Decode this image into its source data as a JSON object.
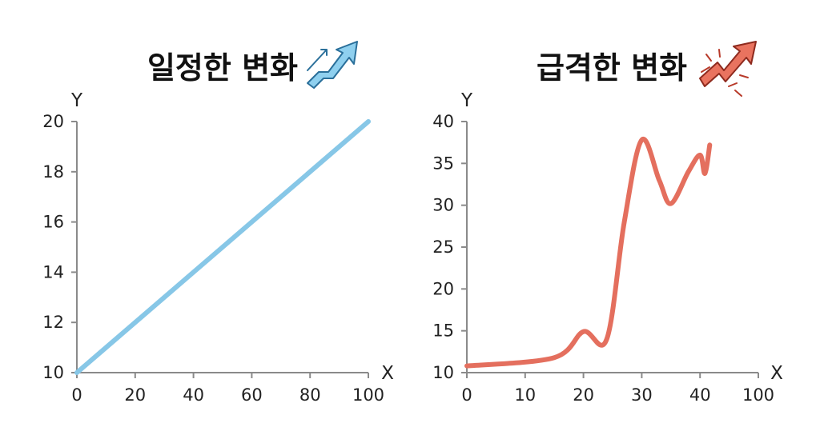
{
  "chart_data": [
    {
      "type": "line",
      "title": "일정한 변화",
      "title_icon": "rising-arrow-icon",
      "color": "#87c7e7",
      "xlabel": "X",
      "ylabel": "Y",
      "xlim": [
        0,
        100
      ],
      "ylim": [
        10,
        20
      ],
      "x_ticks": [
        0,
        20,
        40,
        60,
        80,
        100
      ],
      "y_ticks": [
        10,
        12,
        14,
        16,
        18,
        20
      ],
      "grid": false,
      "x": [
        0,
        100
      ],
      "y": [
        10,
        20
      ]
    },
    {
      "type": "line",
      "title": "급격한 변화",
      "title_icon": "sharp-rise-arrow-icon",
      "color": "#e46f5e",
      "xlabel": "X",
      "ylabel": "Y",
      "xlim": [
        0,
        100
      ],
      "ylim": [
        10,
        40
      ],
      "x_ticks": [
        0,
        10,
        20,
        30,
        40,
        100
      ],
      "y_ticks": [
        10,
        15,
        20,
        25,
        30,
        35,
        40
      ],
      "grid": false,
      "x": [
        0,
        15,
        20,
        24,
        27,
        30,
        33,
        35,
        38,
        40,
        45,
        50
      ],
      "y": [
        10.8,
        11.8,
        14.9,
        14,
        28,
        37.8,
        33,
        30.2,
        34,
        36,
        33.8,
        37.2
      ]
    }
  ]
}
